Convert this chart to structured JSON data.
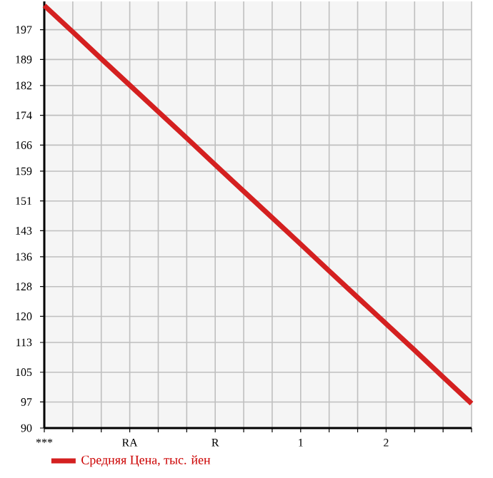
{
  "chart_data": {
    "type": "line",
    "categories": [
      "***",
      null,
      null,
      "RA",
      null,
      null,
      "R",
      null,
      null,
      "1",
      null,
      null,
      "2",
      null,
      null,
      null
    ],
    "series": [
      {
        "name": "Средняя Цена, тыс. йен",
        "color": "#d42020",
        "values": [
          203.5,
          196.4,
          189.2,
          182.1,
          175.0,
          167.9,
          160.7,
          153.6,
          146.5,
          139.4,
          132.2,
          125.1,
          118.0,
          110.9,
          103.7,
          96.6
        ]
      }
    ],
    "ylim": [
      90,
      204.6
    ],
    "yticks": [
      90,
      97,
      105,
      113,
      120,
      128,
      136,
      143,
      151,
      159,
      166,
      174,
      182,
      189,
      197
    ],
    "grid": true,
    "legend": "bottom",
    "marker": "none",
    "line_style": "solid"
  }
}
